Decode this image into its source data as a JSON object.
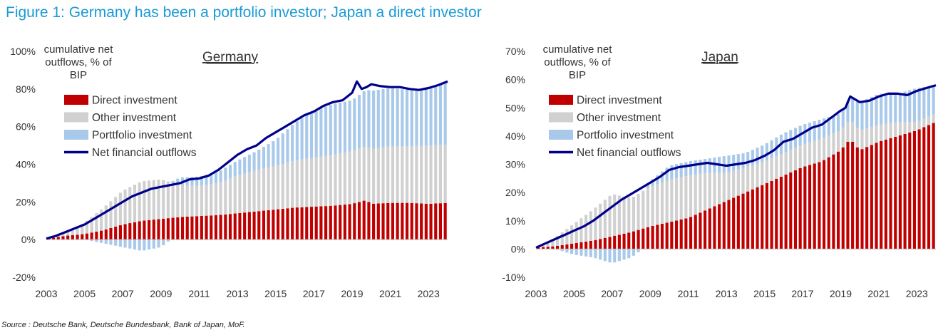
{
  "figure_title": "Figure 1: Germany has been a portfolio investor; Japan a direct investor",
  "source": "Source : Deutsche Bank, Deutsche Bundesbank, Bank of Japan, MoF.",
  "colors": {
    "title": "#1a9ad6",
    "direct": "#c00000",
    "other": "#d0d0d0",
    "portfolio": "#a9c9ea",
    "net": "#00008b"
  },
  "chart_data": [
    {
      "type": "bar",
      "title": "Germany",
      "ylabel": "cumulative net outflows, % of BIP",
      "ylim": [
        -0.2,
        1.0
      ],
      "yticks": [
        -0.2,
        0,
        0.2,
        0.4,
        0.6,
        0.8,
        1.0
      ],
      "ytick_labels": [
        "-20%",
        "0%",
        "20%",
        "40%",
        "60%",
        "80%",
        "100%"
      ],
      "xlim": [
        2003,
        2024
      ],
      "xticks": [
        2003,
        2005,
        2007,
        2009,
        2011,
        2013,
        2015,
        2017,
        2019,
        2021,
        2023
      ],
      "legend": [
        "Direct investment",
        "Other investment",
        "Porttfolio investment",
        "Net financial outflows"
      ],
      "legend_position": "top-left",
      "frequency": "quarterly",
      "series": [
        {
          "name": "Direct investment",
          "kind": "stacked-bar",
          "x": [
            2003,
            2004,
            2005,
            2006,
            2007,
            2008,
            2009,
            2010,
            2011,
            2012,
            2013,
            2014,
            2015,
            2016,
            2017,
            2018,
            2019,
            2019.75,
            2020,
            2021,
            2022,
            2023,
            2024
          ],
          "y": [
            0.005,
            0.02,
            0.03,
            0.05,
            0.08,
            0.1,
            0.11,
            0.12,
            0.125,
            0.13,
            0.14,
            0.15,
            0.16,
            0.17,
            0.175,
            0.18,
            0.19,
            0.21,
            0.19,
            0.195,
            0.195,
            0.19,
            0.195
          ]
        },
        {
          "name": "Other investment",
          "kind": "stacked-bar",
          "x": [
            2003,
            2004,
            2005,
            2006,
            2007,
            2008,
            2009,
            2010,
            2011,
            2012,
            2013,
            2014,
            2015,
            2016,
            2017,
            2018,
            2019,
            2020,
            2021,
            2022,
            2023,
            2024
          ],
          "y": [
            0.0,
            0.02,
            0.06,
            0.12,
            0.18,
            0.21,
            0.21,
            0.17,
            0.16,
            0.17,
            0.2,
            0.22,
            0.23,
            0.25,
            0.26,
            0.27,
            0.28,
            0.29,
            0.3,
            0.3,
            0.31,
            0.31
          ]
        },
        {
          "name": "Porttfolio investment",
          "kind": "stacked-bar",
          "x": [
            2003,
            2004,
            2005,
            2006,
            2007,
            2008,
            2009,
            2010,
            2011,
            2012,
            2013,
            2014,
            2015,
            2016,
            2017,
            2018,
            2019,
            2019.75,
            2020,
            2021,
            2022,
            2023,
            2024
          ],
          "y": [
            0.0,
            0.0,
            0.0,
            -0.02,
            -0.04,
            -0.06,
            -0.04,
            0.04,
            0.05,
            0.06,
            0.08,
            0.1,
            0.14,
            0.2,
            0.25,
            0.27,
            0.27,
            0.3,
            0.31,
            0.31,
            0.3,
            0.3,
            0.33
          ]
        },
        {
          "name": "Net financial outflows",
          "kind": "line",
          "x": [
            2003,
            2003.5,
            2004,
            2004.5,
            2005,
            2005.5,
            2006,
            2006.5,
            2007,
            2007.5,
            2008,
            2008.5,
            2009,
            2009.5,
            2010,
            2010.5,
            2011,
            2011.5,
            2012,
            2012.5,
            2013,
            2013.5,
            2014,
            2014.5,
            2015,
            2015.5,
            2016,
            2016.5,
            2017,
            2017.5,
            2018,
            2018.5,
            2019,
            2019.25,
            2019.5,
            2019.75,
            2020,
            2020.5,
            2021,
            2021.5,
            2022,
            2022.5,
            2023,
            2023.5,
            2024
          ],
          "y": [
            0.005,
            0.02,
            0.04,
            0.06,
            0.08,
            0.11,
            0.14,
            0.17,
            0.2,
            0.23,
            0.25,
            0.27,
            0.28,
            0.29,
            0.3,
            0.32,
            0.325,
            0.34,
            0.37,
            0.41,
            0.45,
            0.48,
            0.5,
            0.54,
            0.57,
            0.6,
            0.63,
            0.66,
            0.68,
            0.71,
            0.73,
            0.74,
            0.78,
            0.84,
            0.8,
            0.81,
            0.825,
            0.815,
            0.81,
            0.81,
            0.8,
            0.795,
            0.805,
            0.82,
            0.84
          ]
        }
      ]
    },
    {
      "type": "bar",
      "title": "Japan",
      "ylabel": "cumulative net outflows, % of BIP",
      "ylim": [
        -0.1,
        0.7
      ],
      "yticks": [
        -0.1,
        0,
        0.1,
        0.2,
        0.3,
        0.4,
        0.5,
        0.6,
        0.7
      ],
      "ytick_labels": [
        "-10%",
        "0%",
        "10%",
        "20%",
        "30%",
        "40%",
        "50%",
        "60%",
        "70%"
      ],
      "xlim": [
        2003,
        2024
      ],
      "xticks": [
        2003,
        2005,
        2007,
        2009,
        2011,
        2013,
        2015,
        2017,
        2019,
        2021,
        2023
      ],
      "legend": [
        "Direct investment",
        "Other investment",
        "Portfolio investment",
        "Net financial outflows"
      ],
      "legend_position": "top-left",
      "frequency": "quarterly",
      "series": [
        {
          "name": "Direct investment",
          "kind": "stacked-bar",
          "x": [
            2003,
            2004,
            2005,
            2006,
            2007,
            2008,
            2009,
            2010,
            2011,
            2012,
            2013,
            2014,
            2015,
            2016,
            2017,
            2018,
            2019,
            2019.5,
            2020,
            2021,
            2022,
            2023,
            2024
          ],
          "y": [
            0.005,
            0.01,
            0.02,
            0.03,
            0.045,
            0.06,
            0.08,
            0.095,
            0.11,
            0.14,
            0.17,
            0.2,
            0.23,
            0.26,
            0.29,
            0.31,
            0.35,
            0.39,
            0.35,
            0.38,
            0.4,
            0.42,
            0.45
          ]
        },
        {
          "name": "Other investment",
          "kind": "stacked-bar",
          "x": [
            2003,
            2004,
            2005,
            2006,
            2007,
            2008,
            2009,
            2010,
            2011,
            2012,
            2013,
            2014,
            2015,
            2016,
            2017,
            2018,
            2019,
            2020,
            2021,
            2022,
            2023,
            2024
          ],
          "y": [
            0.0,
            0.03,
            0.07,
            0.11,
            0.15,
            0.12,
            0.14,
            0.15,
            0.15,
            0.13,
            0.1,
            0.09,
            0.08,
            0.08,
            0.08,
            0.08,
            0.07,
            0.07,
            0.06,
            0.05,
            0.03,
            0.03
          ]
        },
        {
          "name": "Portfolio investment",
          "kind": "stacked-bar",
          "x": [
            2003,
            2004,
            2005,
            2006,
            2007,
            2008,
            2009,
            2010,
            2011,
            2012,
            2013,
            2014,
            2015,
            2016,
            2017,
            2018,
            2019,
            2020,
            2021,
            2022,
            2023,
            2024
          ],
          "y": [
            0.0,
            0.0,
            -0.02,
            -0.03,
            -0.05,
            -0.03,
            0.02,
            0.05,
            0.05,
            0.05,
            0.06,
            0.05,
            0.06,
            0.07,
            0.07,
            0.07,
            0.06,
            0.1,
            0.11,
            0.1,
            0.12,
            0.1
          ]
        },
        {
          "name": "Net financial outflows",
          "kind": "line",
          "x": [
            2003,
            2003.5,
            2004,
            2004.5,
            2005,
            2005.5,
            2006,
            2006.5,
            2007,
            2007.5,
            2008,
            2008.5,
            2009,
            2009.5,
            2010,
            2010.5,
            2011,
            2011.5,
            2012,
            2012.5,
            2013,
            2013.5,
            2014,
            2014.5,
            2015,
            2015.5,
            2016,
            2016.5,
            2017,
            2017.5,
            2018,
            2018.5,
            2019,
            2019.25,
            2019.5,
            2020,
            2020.5,
            2021,
            2021.5,
            2022,
            2022.5,
            2023,
            2023.5,
            2024
          ],
          "y": [
            0.005,
            0.02,
            0.035,
            0.05,
            0.065,
            0.08,
            0.1,
            0.125,
            0.15,
            0.175,
            0.195,
            0.215,
            0.235,
            0.255,
            0.28,
            0.29,
            0.295,
            0.3,
            0.305,
            0.3,
            0.295,
            0.3,
            0.305,
            0.315,
            0.33,
            0.35,
            0.38,
            0.39,
            0.41,
            0.43,
            0.44,
            0.465,
            0.49,
            0.5,
            0.54,
            0.52,
            0.525,
            0.54,
            0.55,
            0.55,
            0.545,
            0.56,
            0.57,
            0.58
          ]
        }
      ]
    }
  ]
}
